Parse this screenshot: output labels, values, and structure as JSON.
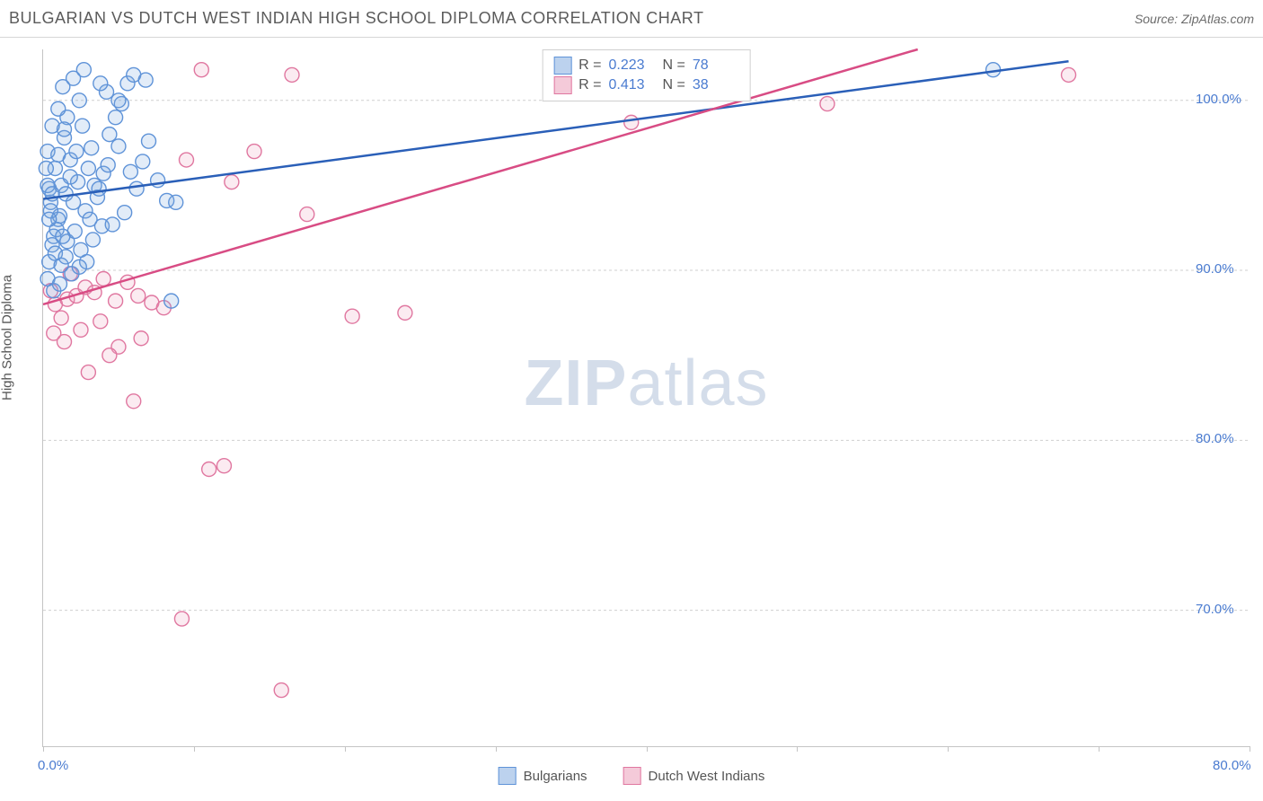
{
  "title": "BULGARIAN VS DUTCH WEST INDIAN HIGH SCHOOL DIPLOMA CORRELATION CHART",
  "source_label": "Source: ZipAtlas.com",
  "ylabel": "High School Diploma",
  "watermark": {
    "bold": "ZIP",
    "light": "atlas"
  },
  "axes": {
    "xlim": [
      0,
      80
    ],
    "ylim": [
      62,
      103
    ],
    "yticks": [
      70,
      80,
      90,
      100
    ],
    "ytick_labels": [
      "70.0%",
      "80.0%",
      "90.0%",
      "100.0%"
    ],
    "xticks": [
      0,
      10,
      20,
      30,
      40,
      50,
      60,
      70,
      80
    ],
    "xtick_labels_shown": {
      "0": "0.0%",
      "80": "80.0%"
    },
    "grid_color": "#cfcfcf",
    "axis_color": "#c4c4c4",
    "tick_label_color": "#4a7bd0"
  },
  "series": [
    {
      "key": "bulgarians",
      "label": "Bulgarians",
      "R": "0.223",
      "N": "78",
      "marker_stroke": "#5f93d8",
      "marker_fill": "#7ca8df",
      "line_color": "#2a5fb8",
      "swatch_fill": "#bcd2ee",
      "swatch_stroke": "#5f93d8",
      "trend": {
        "x1": 0,
        "y1": 94.2,
        "x2": 68,
        "y2": 102.3
      },
      "points": [
        [
          0.5,
          94
        ],
        [
          0.7,
          92
        ],
        [
          0.4,
          90.5
        ],
        [
          0.6,
          91.5
        ],
        [
          1.0,
          93
        ],
        [
          1.2,
          95
        ],
        [
          0.8,
          96
        ],
        [
          0.3,
          97
        ],
        [
          1.5,
          94.5
        ],
        [
          1.1,
          93.2
        ],
        [
          0.9,
          92.4
        ],
        [
          2.0,
          94
        ],
        [
          2.3,
          95.2
        ],
        [
          1.8,
          96.5
        ],
        [
          1.4,
          97.8
        ],
        [
          2.6,
          98.5
        ],
        [
          2.2,
          97
        ],
        [
          3.0,
          96
        ],
        [
          3.4,
          95
        ],
        [
          2.8,
          93.5
        ],
        [
          3.6,
          94.3
        ],
        [
          4.0,
          95.7
        ],
        [
          3.2,
          97.2
        ],
        [
          4.4,
          98
        ],
        [
          4.8,
          99
        ],
        [
          5.2,
          99.8
        ],
        [
          5.6,
          101
        ],
        [
          6.0,
          101.5
        ],
        [
          4.2,
          100.5
        ],
        [
          3.8,
          101
        ],
        [
          6.8,
          101.2
        ],
        [
          5.0,
          100
        ],
        [
          1.6,
          99
        ],
        [
          2.4,
          100
        ],
        [
          0.6,
          98.5
        ],
        [
          1.0,
          99.5
        ],
        [
          1.3,
          100.8
        ],
        [
          2.0,
          101.3
        ],
        [
          2.7,
          101.8
        ],
        [
          0.4,
          94.8
        ],
        [
          0.5,
          93.5
        ],
        [
          0.8,
          91
        ],
        [
          1.2,
          90.3
        ],
        [
          1.6,
          91.7
        ],
        [
          2.1,
          92.3
        ],
        [
          2.5,
          91.2
        ],
        [
          3.3,
          91.8
        ],
        [
          3.9,
          92.6
        ],
        [
          2.9,
          90.5
        ],
        [
          0.3,
          89.5
        ],
        [
          0.7,
          88.8
        ],
        [
          1.1,
          89.2
        ],
        [
          1.9,
          89.8
        ],
        [
          2.4,
          90.2
        ],
        [
          1.5,
          90.8
        ],
        [
          4.6,
          92.7
        ],
        [
          5.4,
          93.4
        ],
        [
          6.2,
          94.8
        ],
        [
          5.8,
          95.8
        ],
        [
          6.6,
          96.4
        ],
        [
          7.0,
          97.6
        ],
        [
          7.6,
          95.3
        ],
        [
          8.2,
          94.1
        ],
        [
          8.8,
          94
        ],
        [
          0.2,
          96
        ],
        [
          0.3,
          95
        ],
        [
          0.4,
          93
        ],
        [
          0.6,
          94.5
        ],
        [
          1.0,
          96.8
        ],
        [
          1.4,
          98.3
        ],
        [
          1.8,
          95.5
        ],
        [
          3.1,
          93
        ],
        [
          3.7,
          94.8
        ],
        [
          4.3,
          96.2
        ],
        [
          5.0,
          97.3
        ],
        [
          63,
          101.8
        ],
        [
          8.5,
          88.2
        ],
        [
          1.3,
          92
        ]
      ]
    },
    {
      "key": "dutch_west_indians",
      "label": "Dutch West Indians",
      "R": "0.413",
      "N": "38",
      "marker_stroke": "#e077a0",
      "marker_fill": "#eda4bf",
      "line_color": "#d84c84",
      "swatch_fill": "#f4cad9",
      "swatch_stroke": "#e077a0",
      "trend": {
        "x1": 0,
        "y1": 88.0,
        "x2": 58,
        "y2": 103
      },
      "points": [
        [
          0.8,
          88
        ],
        [
          1.2,
          87.2
        ],
        [
          0.5,
          88.8
        ],
        [
          1.6,
          88.3
        ],
        [
          2.2,
          88.5
        ],
        [
          2.8,
          89
        ],
        [
          3.4,
          88.7
        ],
        [
          4.0,
          89.5
        ],
        [
          4.8,
          88.2
        ],
        [
          5.6,
          89.3
        ],
        [
          6.3,
          88.5
        ],
        [
          7.2,
          88.1
        ],
        [
          8.0,
          87.8
        ],
        [
          2.5,
          86.5
        ],
        [
          3.8,
          87.0
        ],
        [
          5.0,
          85.5
        ],
        [
          6.5,
          86
        ],
        [
          4.4,
          85
        ],
        [
          3.0,
          84
        ],
        [
          6.0,
          82.3
        ],
        [
          1.8,
          89.8
        ],
        [
          0.7,
          86.3
        ],
        [
          1.4,
          85.8
        ],
        [
          9.5,
          96.5
        ],
        [
          12.5,
          95.2
        ],
        [
          14.0,
          97
        ],
        [
          17.5,
          93.3
        ],
        [
          20.5,
          87.3
        ],
        [
          10.5,
          101.8
        ],
        [
          16.5,
          101.5
        ],
        [
          24,
          87.5
        ],
        [
          39,
          98.7
        ],
        [
          52,
          99.8
        ],
        [
          68,
          101.5
        ],
        [
          9.2,
          69.5
        ],
        [
          15.8,
          65.3
        ],
        [
          11.0,
          78.3
        ],
        [
          12,
          78.5
        ]
      ]
    }
  ],
  "legend_stats_label_R": "R =",
  "legend_stats_label_N": "N ="
}
